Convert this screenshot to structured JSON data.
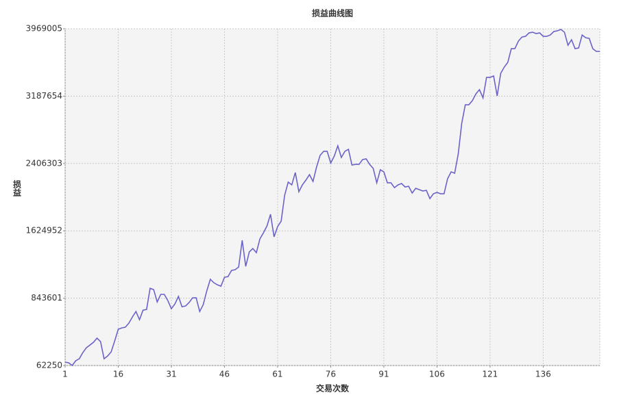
{
  "chart_data": {
    "type": "line",
    "title": "损益曲线图",
    "x_label": "交易次数",
    "y_label": "损益",
    "x": [
      1,
      2,
      3,
      4,
      5,
      6,
      7,
      8,
      9,
      10,
      11,
      12,
      13,
      14,
      15,
      16,
      17,
      18,
      19,
      20,
      21,
      22,
      23,
      24,
      25,
      26,
      27,
      28,
      29,
      30,
      31,
      32,
      33,
      34,
      35,
      36,
      37,
      38,
      39,
      40,
      41,
      42,
      43,
      44,
      45,
      46,
      47,
      48,
      49,
      50,
      51,
      52,
      53,
      54,
      55,
      56,
      57,
      58,
      59,
      60,
      61,
      62,
      63,
      64,
      65,
      66,
      67,
      68,
      69,
      70,
      71,
      72,
      73,
      74,
      75,
      76,
      77,
      78,
      79,
      80,
      81,
      82,
      83,
      84,
      85,
      86,
      87,
      88,
      89,
      90,
      91,
      92,
      93,
      94,
      95,
      96,
      97,
      98,
      99,
      100,
      101,
      102,
      103,
      104,
      105,
      106,
      107,
      108,
      109,
      110,
      111,
      112,
      113,
      114,
      115,
      116,
      117,
      118,
      119,
      120,
      121,
      122,
      123,
      124,
      125,
      126,
      127,
      128,
      129,
      130,
      131,
      132,
      133,
      134,
      135,
      136,
      137,
      138,
      139,
      140,
      141,
      142,
      143,
      144,
      145,
      146,
      147,
      148,
      149,
      150,
      151,
      152
    ],
    "values": [
      102000,
      94000,
      63000,
      118000,
      141000,
      213000,
      269000,
      300000,
      332000,
      380000,
      340000,
      141000,
      173000,
      221000,
      348000,
      483000,
      499000,
      507000,
      554000,
      626000,
      689000,
      594000,
      705000,
      713000,
      959000,
      943000,
      800000,
      888000,
      888000,
      816000,
      721000,
      777000,
      864000,
      745000,
      753000,
      793000,
      848000,
      848000,
      689000,
      769000,
      928000,
      1063000,
      1023000,
      999000,
      983000,
      1086000,
      1094000,
      1166000,
      1174000,
      1205000,
      1515000,
      1213000,
      1380000,
      1420000,
      1372000,
      1531000,
      1602000,
      1682000,
      1817000,
      1555000,
      1674000,
      1737000,
      2039000,
      2190000,
      2158000,
      2301000,
      2079000,
      2158000,
      2214000,
      2277000,
      2198000,
      2365000,
      2500000,
      2547000,
      2547000,
      2412000,
      2492000,
      2611000,
      2476000,
      2547000,
      2571000,
      2388000,
      2396000,
      2396000,
      2452000,
      2460000,
      2396000,
      2349000,
      2182000,
      2333000,
      2309000,
      2182000,
      2182000,
      2126000,
      2158000,
      2174000,
      2134000,
      2142000,
      2063000,
      2118000,
      2103000,
      2087000,
      2095000,
      1999000,
      2055000,
      2071000,
      2055000,
      2055000,
      2230000,
      2309000,
      2293000,
      2515000,
      2873000,
      3087000,
      3087000,
      3135000,
      3214000,
      3262000,
      3167000,
      3405000,
      3405000,
      3421000,
      3190000,
      3452000,
      3524000,
      3579000,
      3738000,
      3738000,
      3826000,
      3873000,
      3881000,
      3921000,
      3929000,
      3913000,
      3921000,
      3881000,
      3881000,
      3897000,
      3937000,
      3945000,
      3961000,
      3929000,
      3778000,
      3841000,
      3738000,
      3746000,
      3897000,
      3865000,
      3857000,
      3738000,
      3706000,
      3706000
    ],
    "color": "#6a62c8",
    "xlim": [
      1,
      152
    ],
    "xticks": [
      1,
      16,
      31,
      46,
      61,
      76,
      91,
      106,
      121,
      136
    ],
    "ylim": [
      62250,
      3969005
    ],
    "yticks": [
      62250,
      843601,
      1624952,
      2406303,
      3187654,
      3969005
    ],
    "grid": true
  }
}
